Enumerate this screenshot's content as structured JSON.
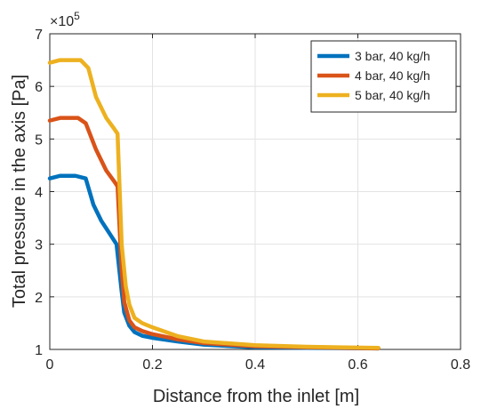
{
  "chart_data": {
    "type": "line",
    "xlabel": "Distance from the inlet [m]",
    "ylabel": "Total pressure in the axis [Pa]",
    "y_exponent_label": "×10",
    "y_exponent_power": "5",
    "xlim": [
      0,
      0.8
    ],
    "ylim": [
      1,
      7
    ],
    "x_ticks": [
      0,
      0.2,
      0.4,
      0.6,
      0.8
    ],
    "x_tick_labels": [
      "0",
      "0.2",
      "0.4",
      "0.6",
      "0.8"
    ],
    "y_ticks": [
      1,
      2,
      3,
      4,
      5,
      6,
      7
    ],
    "y_tick_labels": [
      "1",
      "2",
      "3",
      "4",
      "5",
      "6",
      "7"
    ],
    "grid": true,
    "legend_position": "top-right",
    "series": [
      {
        "name": "3 bar, 40 kg/h",
        "color": "#0072BD",
        "points": [
          [
            0.0,
            4.25
          ],
          [
            0.02,
            4.3
          ],
          [
            0.05,
            4.3
          ],
          [
            0.07,
            4.25
          ],
          [
            0.085,
            3.75
          ],
          [
            0.1,
            3.45
          ],
          [
            0.12,
            3.15
          ],
          [
            0.13,
            3.0
          ],
          [
            0.14,
            2.1
          ],
          [
            0.145,
            1.7
          ],
          [
            0.155,
            1.45
          ],
          [
            0.165,
            1.33
          ],
          [
            0.18,
            1.26
          ],
          [
            0.2,
            1.22
          ],
          [
            0.25,
            1.15
          ],
          [
            0.3,
            1.09
          ],
          [
            0.4,
            1.04
          ],
          [
            0.5,
            1.03
          ],
          [
            0.64,
            1.02
          ]
        ]
      },
      {
        "name": "4 bar, 40 kg/h",
        "color": "#D95319",
        "points": [
          [
            0.0,
            5.35
          ],
          [
            0.02,
            5.4
          ],
          [
            0.055,
            5.4
          ],
          [
            0.07,
            5.3
          ],
          [
            0.09,
            4.8
          ],
          [
            0.11,
            4.4
          ],
          [
            0.125,
            4.2
          ],
          [
            0.132,
            4.1
          ],
          [
            0.14,
            2.5
          ],
          [
            0.145,
            1.9
          ],
          [
            0.155,
            1.55
          ],
          [
            0.165,
            1.42
          ],
          [
            0.18,
            1.35
          ],
          [
            0.2,
            1.29
          ],
          [
            0.25,
            1.19
          ],
          [
            0.3,
            1.12
          ],
          [
            0.4,
            1.06
          ],
          [
            0.5,
            1.04
          ],
          [
            0.64,
            1.02
          ]
        ]
      },
      {
        "name": "5 bar, 40 kg/h",
        "color": "#EDB120",
        "points": [
          [
            0.0,
            6.45
          ],
          [
            0.02,
            6.5
          ],
          [
            0.06,
            6.5
          ],
          [
            0.075,
            6.35
          ],
          [
            0.09,
            5.8
          ],
          [
            0.11,
            5.4
          ],
          [
            0.125,
            5.2
          ],
          [
            0.132,
            5.1
          ],
          [
            0.14,
            3.0
          ],
          [
            0.148,
            2.2
          ],
          [
            0.155,
            1.85
          ],
          [
            0.165,
            1.6
          ],
          [
            0.18,
            1.5
          ],
          [
            0.2,
            1.42
          ],
          [
            0.25,
            1.25
          ],
          [
            0.3,
            1.15
          ],
          [
            0.4,
            1.08
          ],
          [
            0.5,
            1.05
          ],
          [
            0.64,
            1.03
          ]
        ]
      }
    ]
  }
}
